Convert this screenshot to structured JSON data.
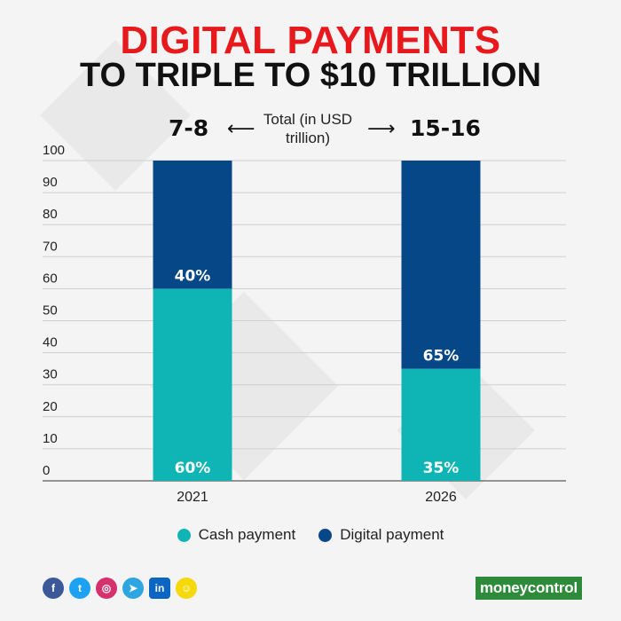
{
  "title_line1": "DIGITAL PAYMENTS",
  "title_line2": "TO TRIPLE TO $10 TRILLION",
  "totals": {
    "left_value": "7-8",
    "right_value": "15-16",
    "note": "Total (in USD trillion)"
  },
  "chart_data": {
    "type": "bar",
    "stacked": true,
    "categories": [
      "2021",
      "2026"
    ],
    "series": [
      {
        "name": "Cash payment",
        "values": [
          60,
          35
        ],
        "labels": [
          "60%",
          "35%"
        ],
        "color": "#0fb5b5"
      },
      {
        "name": "Digital payment",
        "values": [
          40,
          65
        ],
        "labels": [
          "40%",
          "65%"
        ],
        "color": "#064887"
      }
    ],
    "y_ticks": [
      "0",
      "10",
      "20",
      "30",
      "40",
      "50",
      "60",
      "70",
      "80",
      "90",
      "100"
    ],
    "ylim": [
      0,
      100
    ],
    "grid": true,
    "legend_position": "bottom"
  },
  "social_icons": [
    "facebook-icon",
    "twitter-icon",
    "instagram-icon",
    "telegram-icon",
    "linkedin-icon",
    "snapchat-icon"
  ],
  "brand": "moneycontrol",
  "colors": {
    "title_red": "#e8191c",
    "cash": "#0fb5b5",
    "digital": "#064887",
    "brand_green": "#2e8b3a"
  }
}
